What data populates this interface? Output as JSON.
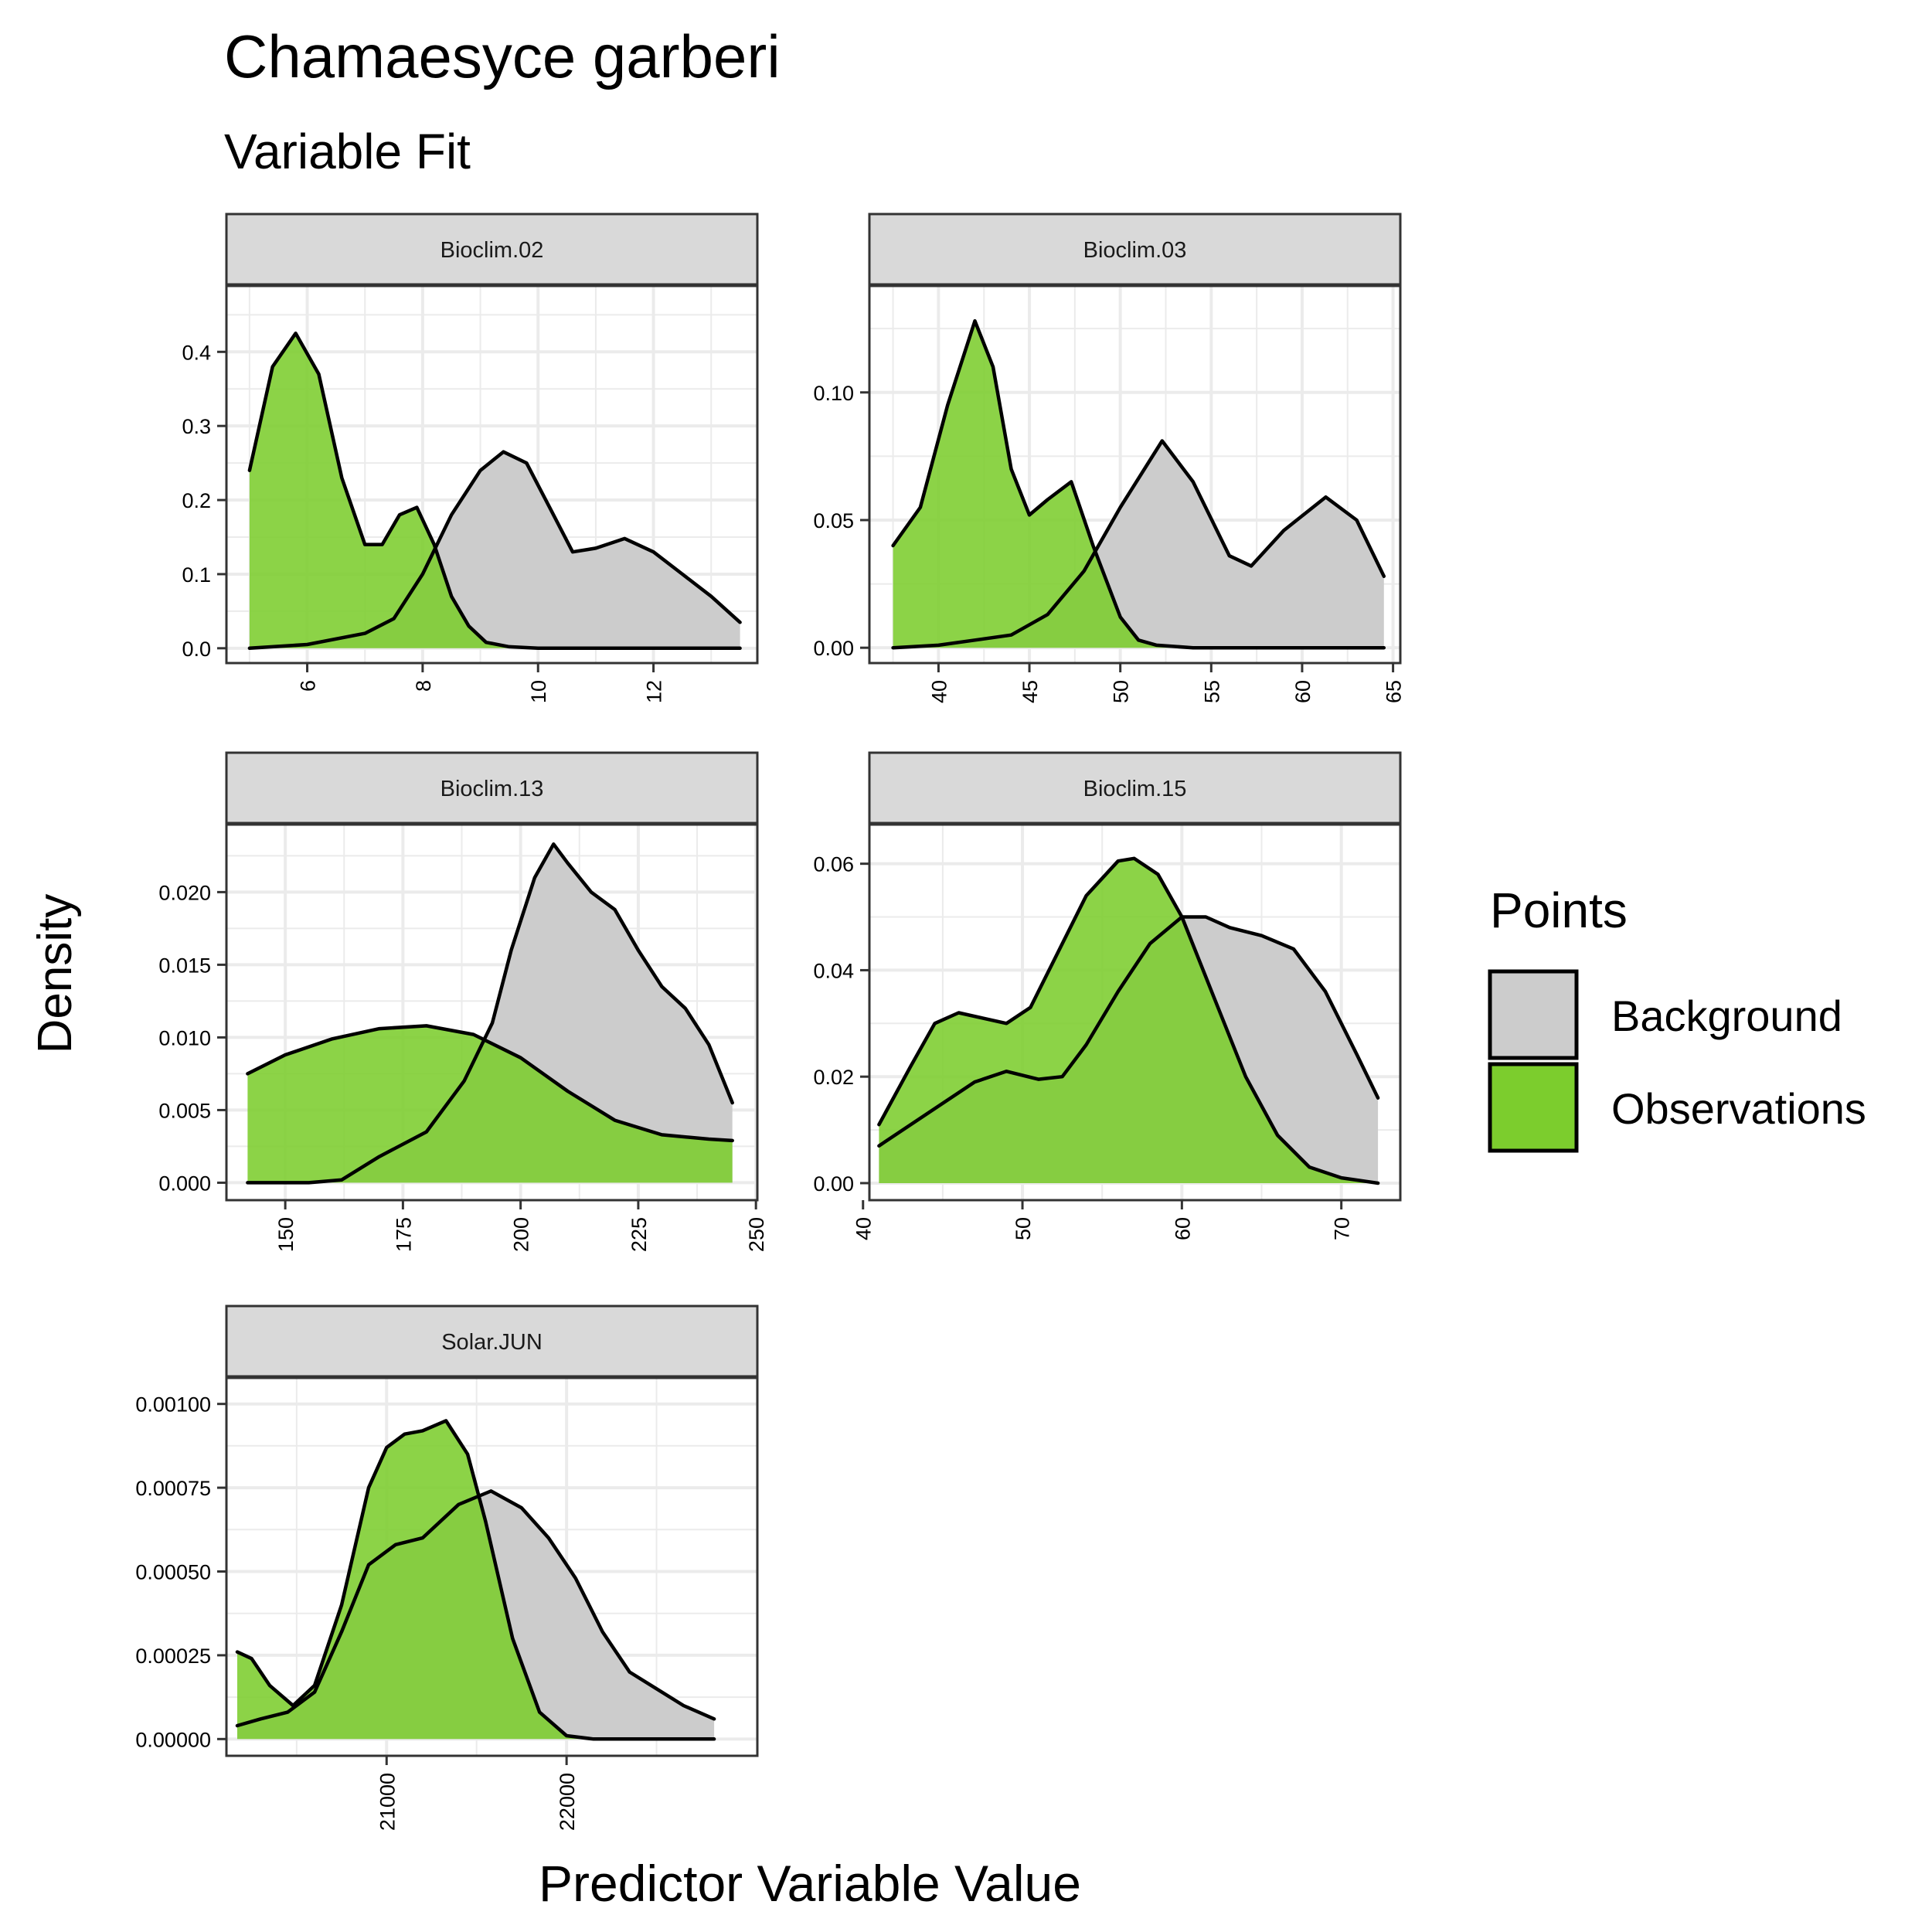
{
  "title": "Chamaesyce garberi",
  "subtitle": "Variable Fit",
  "ylabel": "Density",
  "xlabel": "Predictor Variable Value",
  "legend": {
    "title": "Points",
    "placement": "right",
    "items": [
      {
        "label": "Background",
        "color": "#cccccc"
      },
      {
        "label": "Observations",
        "color": "#7ccd2d"
      }
    ]
  },
  "colors": {
    "background_fill": "#cccccc",
    "observations_fill": "#7ccd2d",
    "strip_fill": "#d9d9d9",
    "grid": "#ebebeb",
    "border": "#333333"
  },
  "chart_data": [
    {
      "type": "area",
      "panel": "Bioclim.02",
      "xlim": [
        4.6,
        13.8
      ],
      "ylim": [
        -0.02,
        0.49
      ],
      "xticks": [
        6,
        8,
        10,
        12
      ],
      "yticks": [
        0.0,
        0.1,
        0.2,
        0.3,
        0.4
      ],
      "ytick_labels": [
        "0.0",
        "0.1",
        "0.2",
        "0.3",
        "0.4"
      ],
      "series": [
        {
          "name": "Background",
          "x": [
            5.0,
            6.0,
            7.0,
            7.5,
            8.0,
            8.5,
            9.0,
            9.4,
            9.8,
            10.2,
            10.6,
            11.0,
            11.5,
            12.0,
            12.5,
            13.0,
            13.5
          ],
          "y": [
            0.0,
            0.005,
            0.02,
            0.04,
            0.1,
            0.18,
            0.24,
            0.265,
            0.25,
            0.19,
            0.13,
            0.135,
            0.148,
            0.13,
            0.1,
            0.07,
            0.035
          ]
        },
        {
          "name": "Observations",
          "x": [
            5.0,
            5.4,
            5.8,
            6.2,
            6.6,
            7.0,
            7.3,
            7.6,
            7.9,
            8.2,
            8.5,
            8.8,
            9.1,
            9.5,
            10.0,
            11.0,
            12.0,
            13.5
          ],
          "y": [
            0.24,
            0.38,
            0.425,
            0.37,
            0.23,
            0.14,
            0.14,
            0.18,
            0.19,
            0.14,
            0.07,
            0.03,
            0.008,
            0.002,
            0.0,
            0.0,
            0.0,
            0.0
          ]
        }
      ]
    },
    {
      "type": "area",
      "panel": "Bioclim.03",
      "xlim": [
        36.2,
        65.4
      ],
      "ylim": [
        -0.006,
        0.142
      ],
      "xticks": [
        40,
        45,
        50,
        55,
        60,
        65
      ],
      "yticks": [
        0.0,
        0.05,
        0.1
      ],
      "ytick_labels": [
        "0.00",
        "0.05",
        "0.10"
      ],
      "series": [
        {
          "name": "Background",
          "x": [
            37.5,
            40,
            42,
            44,
            46,
            48,
            50,
            52.3,
            54,
            56,
            57.2,
            59,
            61.3,
            63,
            64.5
          ],
          "y": [
            0.0,
            0.001,
            0.003,
            0.005,
            0.013,
            0.03,
            0.055,
            0.081,
            0.065,
            0.036,
            0.032,
            0.046,
            0.059,
            0.05,
            0.028
          ]
        },
        {
          "name": "Observations",
          "x": [
            37.5,
            39,
            40.5,
            42,
            43,
            44,
            45,
            46,
            47.3,
            48.5,
            50,
            51,
            52,
            54,
            58,
            64.5
          ],
          "y": [
            0.04,
            0.055,
            0.095,
            0.128,
            0.11,
            0.07,
            0.052,
            0.058,
            0.065,
            0.04,
            0.012,
            0.003,
            0.001,
            0.0,
            0.0,
            0.0
          ]
        }
      ]
    },
    {
      "type": "area",
      "panel": "Bioclim.13",
      "xlim": [
        137.5,
        250.3
      ],
      "ylim": [
        -0.0012,
        0.0247
      ],
      "xticks": [
        150,
        175,
        200,
        225,
        250
      ],
      "yticks": [
        0.0,
        0.005,
        0.01,
        0.015,
        0.02
      ],
      "ytick_labels": [
        "0.000",
        "0.005",
        "0.010",
        "0.015",
        "0.020"
      ],
      "series": [
        {
          "name": "Background",
          "x": [
            142,
            155,
            162,
            170,
            180,
            188,
            194,
            198,
            203,
            207,
            210,
            215,
            220,
            225,
            230,
            235,
            240,
            245
          ],
          "y": [
            0.0,
            0.0,
            0.0002,
            0.0018,
            0.0035,
            0.007,
            0.011,
            0.016,
            0.021,
            0.0233,
            0.022,
            0.02,
            0.0188,
            0.016,
            0.0135,
            0.012,
            0.0095,
            0.0055
          ]
        },
        {
          "name": "Observations",
          "x": [
            142,
            150,
            160,
            170,
            180,
            190,
            200,
            210,
            220,
            230,
            240,
            245
          ],
          "y": [
            0.0075,
            0.0088,
            0.0099,
            0.0106,
            0.0108,
            0.0102,
            0.0086,
            0.0063,
            0.0043,
            0.0033,
            0.003,
            0.0029
          ]
        }
      ]
    },
    {
      "type": "area",
      "panel": "Bioclim.15",
      "xlim": [
        40.4,
        73.7
      ],
      "ylim": [
        -0.0032,
        0.0675
      ],
      "xticks": [
        40,
        50,
        60,
        70
      ],
      "yticks": [
        0.0,
        0.02,
        0.04,
        0.06
      ],
      "ytick_labels": [
        "0.00",
        "0.02",
        "0.04",
        "0.06"
      ],
      "series": [
        {
          "name": "Background",
          "x": [
            41,
            44,
            47,
            49,
            51,
            52.5,
            54,
            56,
            58,
            60,
            61.5,
            63,
            65,
            67,
            69,
            71,
            72.3
          ],
          "y": [
            0.007,
            0.013,
            0.019,
            0.021,
            0.0195,
            0.02,
            0.026,
            0.036,
            0.045,
            0.05,
            0.05,
            0.048,
            0.0465,
            0.044,
            0.036,
            0.024,
            0.016
          ]
        },
        {
          "name": "Observations",
          "x": [
            41,
            43,
            44.5,
            46,
            47.5,
            49,
            50.5,
            52,
            54,
            56,
            57,
            58.5,
            60,
            62,
            64,
            66,
            68,
            70,
            72.3
          ],
          "y": [
            0.011,
            0.022,
            0.03,
            0.032,
            0.031,
            0.03,
            0.033,
            0.042,
            0.054,
            0.0605,
            0.061,
            0.058,
            0.05,
            0.035,
            0.02,
            0.009,
            0.003,
            0.001,
            0.0
          ]
        }
      ]
    },
    {
      "type": "area",
      "panel": "Solar.JUN",
      "xlim": [
        20110,
        23060
      ],
      "ylim": [
        -5e-05,
        0.00108
      ],
      "xticks": [
        21000,
        22000
      ],
      "yticks": [
        0.0,
        0.00025,
        0.0005,
        0.00075,
        0.001
      ],
      "ytick_labels": [
        "0.00000",
        "0.00025",
        "0.00050",
        "0.00075",
        "0.00100"
      ],
      "series": [
        {
          "name": "Background",
          "x": [
            20170,
            20300,
            20450,
            20600,
            20750,
            20900,
            21050,
            21200,
            21400,
            21580,
            21750,
            21900,
            22050,
            22200,
            22350,
            22500,
            22650,
            22820
          ],
          "y": [
            4e-05,
            6e-05,
            8e-05,
            0.00014,
            0.00032,
            0.00052,
            0.00058,
            0.0006,
            0.0007,
            0.00074,
            0.00069,
            0.0006,
            0.00048,
            0.00032,
            0.0002,
            0.00015,
            0.0001,
            6e-05
          ]
        },
        {
          "name": "Observations",
          "x": [
            20170,
            20250,
            20350,
            20480,
            20600,
            20750,
            20900,
            21000,
            21100,
            21200,
            21330,
            21450,
            21550,
            21700,
            21850,
            22000,
            22150,
            22300,
            22820
          ],
          "y": [
            0.00026,
            0.00024,
            0.00016,
            0.0001,
            0.00016,
            0.0004,
            0.00075,
            0.00087,
            0.00091,
            0.00092,
            0.00095,
            0.00085,
            0.00065,
            0.0003,
            8e-05,
            1e-05,
            0.0,
            0.0,
            0.0
          ]
        }
      ]
    }
  ]
}
